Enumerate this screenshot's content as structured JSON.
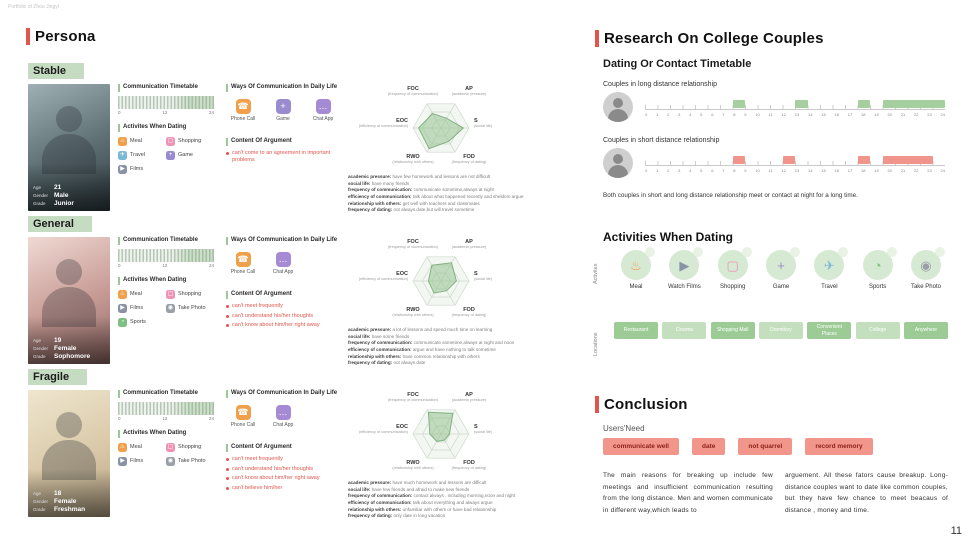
{
  "page": {
    "header": "Portfolio of Zhou Jingyi",
    "page_number": "11"
  },
  "persona_section": {
    "title": "Persona",
    "personas": [
      {
        "label": "Stable",
        "profile": [
          {
            "k": "Age",
            "v": "21"
          },
          {
            "k": "Gender",
            "v": "Male"
          },
          {
            "k": "Grade",
            "v": "Junior"
          }
        ],
        "timetable": {
          "title": "Communication Timetable",
          "ticks": [
            "0",
            "12",
            "24"
          ]
        },
        "ways": {
          "title": "Ways Of Communication In Daily Life",
          "items": [
            {
              "label": "Phone Call",
              "icon": "phone-icon"
            },
            {
              "label": "Game",
              "icon": "game-icon"
            },
            {
              "label": "Chat App",
              "icon": "chat-icon"
            }
          ]
        },
        "activities": {
          "title": "Activites When Dating",
          "items": [
            {
              "label": "Meal",
              "icon": "meal-icon"
            },
            {
              "label": "Shopping",
              "icon": "shopping-icon"
            },
            {
              "label": "Travel",
              "icon": "travel-icon"
            },
            {
              "label": "Game",
              "icon": "game-icon"
            },
            {
              "label": "Films",
              "icon": "films-icon"
            }
          ]
        },
        "argument": {
          "title": "Content Of Argument",
          "items": [
            "can't come to an agreement in important problems"
          ]
        },
        "radar": {
          "axes": [
            {
              "abbr": "FOC",
              "desc": "(frequency of communication)"
            },
            {
              "abbr": "AP",
              "desc": "(academic pressure)"
            },
            {
              "abbr": "S",
              "desc": "(social life)"
            },
            {
              "abbr": "FOD",
              "desc": "(frequency of dating)"
            },
            {
              "abbr": "RWO",
              "desc": "(relationship with others)"
            },
            {
              "abbr": "EOC",
              "desc": "(efficiency of communication)"
            }
          ],
          "values": [
            0.6,
            0.4,
            0.8,
            0.55,
            0.85,
            0.8
          ]
        },
        "details": [
          {
            "term": "academic pressure:",
            "text": "have few homework and lessons are not difficult"
          },
          {
            "term": "social life:",
            "text": "have many friends"
          },
          {
            "term": "frequency of communication:",
            "text": "communicate sometime,always at night"
          },
          {
            "term": "efficiency of communication:",
            "text": "talk about what happened recently and sheldom argue"
          },
          {
            "term": "relationship with others:",
            "text": "get well with teachers and classmates"
          },
          {
            "term": "frequency of dating:",
            "text": "not always date,but will travel sometime"
          }
        ]
      },
      {
        "label": "General",
        "profile": [
          {
            "k": "Age",
            "v": "19"
          },
          {
            "k": "Gender",
            "v": "Female"
          },
          {
            "k": "Grade",
            "v": "Sophomore"
          }
        ],
        "timetable": {
          "title": "Communication Timetable",
          "ticks": [
            "0",
            "12",
            "24"
          ]
        },
        "ways": {
          "title": "Ways Of Communication In Daily Life",
          "items": [
            {
              "label": "Phone Call",
              "icon": "phone-icon"
            },
            {
              "label": "Chat App",
              "icon": "chat-icon"
            }
          ]
        },
        "activities": {
          "title": "Activites When Dating",
          "items": [
            {
              "label": "Meal",
              "icon": "meal-icon"
            },
            {
              "label": "Shopping",
              "icon": "shopping-icon"
            },
            {
              "label": "Films",
              "icon": "films-icon"
            },
            {
              "label": "Take Photo",
              "icon": "camera-icon"
            },
            {
              "label": "Sports",
              "icon": "sports-icon"
            }
          ]
        },
        "argument": {
          "title": "Content Of Argument",
          "items": [
            "can't meet frequently",
            "can't understand his/her thoughts",
            "can't know about him/her right away"
          ]
        },
        "radar": {
          "axes": [
            {
              "abbr": "FOC",
              "desc": "(frequency of communication)"
            },
            {
              "abbr": "AP",
              "desc": "(academic pressure)"
            },
            {
              "abbr": "S",
              "desc": "(social life)"
            },
            {
              "abbr": "FOD",
              "desc": "(frequency of dating)"
            },
            {
              "abbr": "RWO",
              "desc": "(relationship with others)"
            },
            {
              "abbr": "EOC",
              "desc": "(efficiency of communication)"
            }
          ],
          "values": [
            0.65,
            0.75,
            0.55,
            0.4,
            0.5,
            0.45
          ]
        },
        "details": [
          {
            "term": "academic pressure:",
            "text": "a lot of lessons and spend much time on learning"
          },
          {
            "term": "social life:",
            "text": "have some friends"
          },
          {
            "term": "frequency of communication:",
            "text": "communicate sometime,always at night and noon"
          },
          {
            "term": "efficiency of communication:",
            "text": "argue and have nothing to talk sometime"
          },
          {
            "term": "relationship with others:",
            "text": "have common relationship with others"
          },
          {
            "term": "frequency of dating:",
            "text": "not always date"
          }
        ]
      },
      {
        "label": "Fragile",
        "profile": [
          {
            "k": "Age",
            "v": "18"
          },
          {
            "k": "Gender",
            "v": "Female"
          },
          {
            "k": "Grade",
            "v": "Freshman"
          }
        ],
        "timetable": {
          "title": "Communication Timetable",
          "ticks": [
            "0",
            "12",
            "24"
          ]
        },
        "ways": {
          "title": "Ways Of Communication In Daily Life",
          "items": [
            {
              "label": "Phone Call",
              "icon": "phone-icon"
            },
            {
              "label": "Chat App",
              "icon": "chat-icon"
            }
          ]
        },
        "activities": {
          "title": "Activites When Dating",
          "items": [
            {
              "label": "Meal",
              "icon": "meal-icon"
            },
            {
              "label": "Shopping",
              "icon": "shopping-icon"
            },
            {
              "label": "Films",
              "icon": "films-icon"
            },
            {
              "label": "Take Photo",
              "icon": "camera-icon"
            }
          ]
        },
        "argument": {
          "title": "Content Of Argument",
          "items": [
            "can't meet frequently",
            "can't understand his/her thoughts",
            "can't know about him/her right away",
            "can't believe him/her"
          ]
        },
        "radar": {
          "axes": [
            {
              "abbr": "FOC",
              "desc": "(frequency of communication)"
            },
            {
              "abbr": "AP",
              "desc": "(academic pressure)"
            },
            {
              "abbr": "S",
              "desc": "(social life)"
            },
            {
              "abbr": "FOD",
              "desc": "(frequency of dating)"
            },
            {
              "abbr": "RWO",
              "desc": "(relationship with others)"
            },
            {
              "abbr": "EOC",
              "desc": "(efficiency of communication)"
            }
          ],
          "values": [
            0.9,
            0.85,
            0.3,
            0.25,
            0.3,
            0.4
          ]
        },
        "details": [
          {
            "term": "academic pressure:",
            "text": "have much homework and lessons are difficult"
          },
          {
            "term": "social life:",
            "text": "have few friends and afraid to make new friends"
          },
          {
            "term": "frequency of communication:",
            "text": "contact always , including morning,noon and night"
          },
          {
            "term": "efficiency of communication:",
            "text": "talk about everything and always argue"
          },
          {
            "term": "relationship with others:",
            "text": "unfamiliar with others or have bad relationship"
          },
          {
            "term": "frequency of dating:",
            "text": "only date in long vacation"
          }
        ]
      }
    ]
  },
  "research_section": {
    "title": "Research On College Couples",
    "timetable": {
      "title": "Dating Or Contact Timetable",
      "hours_max": 24,
      "rows": [
        {
          "label": "Couples in long distance relationship",
          "color": "#a6cf9f",
          "blocks": [
            [
              7,
              8
            ],
            [
              12,
              13
            ],
            [
              17,
              18
            ],
            [
              19,
              24
            ]
          ]
        },
        {
          "label": "Couples in short distance relationship",
          "color": "#f0948c",
          "blocks": [
            [
              7,
              8
            ],
            [
              11,
              12
            ],
            [
              17,
              18
            ],
            [
              19,
              23
            ]
          ]
        }
      ],
      "note": "Both couples in short and long distance relationship meet or contact at night for a long time."
    },
    "dating": {
      "title": "Activities When Dating",
      "row_labels": [
        "Activites",
        "Locations"
      ],
      "pairs": [
        {
          "activity": "Meal",
          "icon": "meal-icon",
          "location": "Restaurant"
        },
        {
          "activity": "Watch Films",
          "icon": "films-icon",
          "location": "Cinema"
        },
        {
          "activity": "Shopping",
          "icon": "shopping-icon",
          "location": "Shopping Mall"
        },
        {
          "activity": "Game",
          "icon": "game-icon",
          "location": "Dormitory"
        },
        {
          "activity": "Travel",
          "icon": "travel-icon",
          "location": "Convenient Places"
        },
        {
          "activity": "Sports",
          "icon": "sports-icon",
          "location": "College"
        },
        {
          "activity": "Take Photo",
          "icon": "camera-icon",
          "location": "Anywhere"
        }
      ]
    },
    "conclusion": {
      "title": "Conclusion",
      "subtitle": "Users'Need",
      "needs": [
        "communicate well",
        "date",
        "not quarrel",
        "record memory"
      ],
      "paragraphs": [
        "The main reasons for breaking up include few meetings and insufficient communication resulting from the long distance. Men and women communicate in different way,which leads to",
        "arguement. All these fators cause breakup. Long-distance couples want to date like common couples, but they have few chance to meet beacaus of distance , money and time."
      ]
    }
  }
}
